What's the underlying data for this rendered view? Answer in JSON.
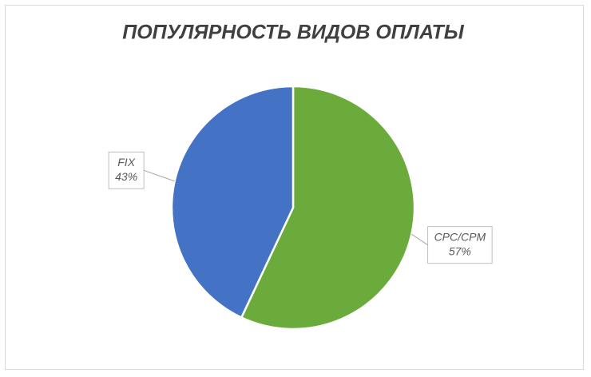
{
  "chart_data": {
    "type": "pie",
    "title": "ПОПУЛЯРНОСТЬ ВИДОВ ОПЛАТЫ",
    "categories": [
      "CPC/CPM",
      "FIX"
    ],
    "values": [
      57,
      43
    ],
    "value_labels": [
      "57%",
      "43%"
    ],
    "colors": [
      "#6aab3b",
      "#4472c4"
    ]
  }
}
